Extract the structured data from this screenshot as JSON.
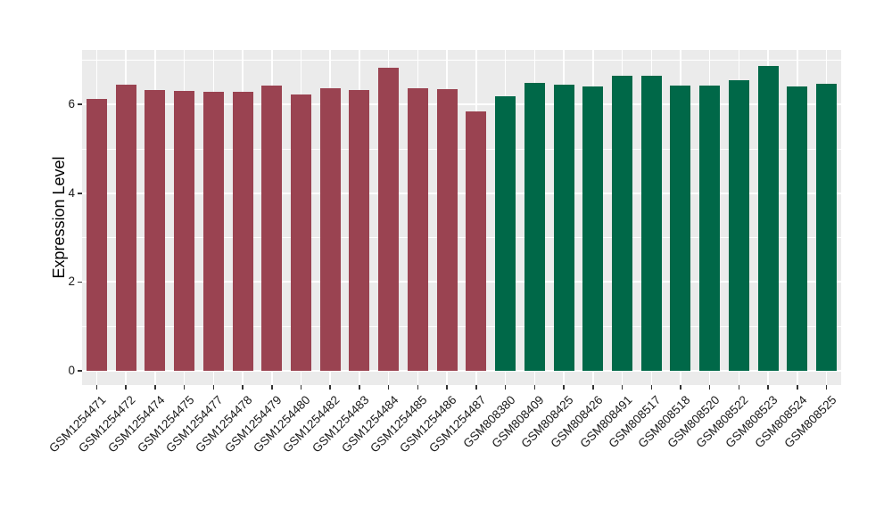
{
  "figure": {
    "background": "#ffffff",
    "panel_background": "#EBEBEB",
    "grid_color": "#ffffff"
  },
  "chart_data": {
    "type": "bar",
    "title": "",
    "xlabel": "",
    "ylabel": "Expression Level",
    "categories": [
      "GSM1254471",
      "GSM1254472",
      "GSM1254474",
      "GSM1254475",
      "GSM1254477",
      "GSM1254478",
      "GSM1254479",
      "GSM1254480",
      "GSM1254482",
      "GSM1254483",
      "GSM1254484",
      "GSM1254485",
      "GSM1254486",
      "GSM1254487",
      "GSM808380",
      "GSM808409",
      "GSM808425",
      "GSM808426",
      "GSM808491",
      "GSM808517",
      "GSM808518",
      "GSM808520",
      "GSM808522",
      "GSM808523",
      "GSM808524",
      "GSM808525"
    ],
    "values": [
      6.13,
      6.44,
      6.33,
      6.3,
      6.28,
      6.29,
      6.43,
      6.23,
      6.37,
      6.32,
      6.82,
      6.37,
      6.35,
      5.85,
      6.19,
      6.48,
      6.45,
      6.41,
      6.64,
      6.65,
      6.43,
      6.43,
      6.55,
      6.87,
      6.41,
      6.47
    ],
    "groups": [
      {
        "color": "#9A4351",
        "count": 14
      },
      {
        "color": "#006848",
        "count": 12
      }
    ],
    "ylim": [
      -0.36,
      7.23
    ],
    "yticks": [
      0,
      2,
      4,
      6
    ],
    "yticks_minor": [
      1,
      3,
      5,
      7
    ],
    "grid": true,
    "legend": false
  }
}
